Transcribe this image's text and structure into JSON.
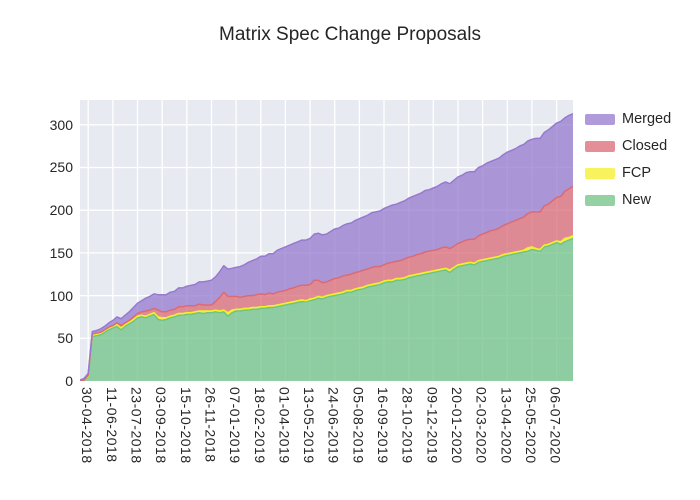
{
  "title": "Matrix Spec Change Proposals",
  "legend": {
    "items": [
      {
        "label": "Merged",
        "color": "#957ace"
      },
      {
        "label": "Closed",
        "color": "#db6a75"
      },
      {
        "label": "FCP",
        "color": "#f5ef26"
      },
      {
        "label": "New",
        "color": "#70c385"
      }
    ]
  },
  "colors": {
    "plot_background": "#e8eaf2",
    "grid": "#ffffff",
    "text": "#262626",
    "new": "#70c385",
    "fcp": "#f5ef26",
    "closed": "#db6a75",
    "merged": "#957ace"
  },
  "chart_data": {
    "type": "area",
    "stacked": true,
    "title": "Matrix Spec Change Proposals",
    "xlabel": "",
    "ylabel": "",
    "grid": true,
    "legend_position": "upper right, outside plot",
    "y_ticks": [
      0,
      50,
      100,
      150,
      200,
      250,
      300
    ],
    "ylim": [
      0,
      329
    ],
    "x_points": 121,
    "x_unit": "weeks, starting 2 weeks before first tick",
    "x_tick_labels": [
      "30-04-2018",
      "11-06-2018",
      "23-07-2018",
      "03-09-2018",
      "15-10-2018",
      "26-11-2018",
      "07-01-2019",
      "18-02-2019",
      "01-04-2019",
      "13-05-2019",
      "24-06-2019",
      "05-08-2019",
      "16-09-2019",
      "28-10-2019",
      "09-12-2019",
      "20-01-2020",
      "02-03-2020",
      "13-04-2020",
      "25-05-2020",
      "06-07-2020"
    ],
    "first_tick_point_index": 2,
    "tick_step_points": 6,
    "series": [
      {
        "name": "New",
        "color": "#70c385",
        "values": [
          0,
          1,
          5,
          52,
          53,
          54,
          57,
          60,
          62,
          64,
          60,
          64,
          67,
          70,
          74,
          75,
          74,
          76,
          78,
          72,
          71,
          72,
          74,
          75,
          77,
          77,
          78,
          78,
          79,
          80,
          79,
          80,
          80,
          81,
          80,
          81,
          76,
          80,
          82,
          82,
          83,
          83,
          84,
          84,
          85,
          85,
          86,
          86,
          87,
          88,
          89,
          90,
          91,
          92,
          93,
          93,
          94,
          95,
          97,
          96,
          98,
          99,
          100,
          101,
          102,
          104,
          104,
          106,
          107,
          108,
          110,
          111,
          112,
          113,
          115,
          116,
          116,
          118,
          118,
          119,
          121,
          122,
          123,
          124,
          125,
          126,
          127,
          128,
          129,
          130,
          127,
          131,
          134,
          135,
          136,
          137,
          136,
          139,
          140,
          141,
          142,
          143,
          144,
          146,
          147,
          148,
          149,
          150,
          151,
          152,
          154,
          153,
          152,
          157,
          158,
          160,
          162,
          160,
          163,
          165,
          167
        ]
      },
      {
        "name": "FCP",
        "color": "#f5ef26",
        "values": [
          0,
          0,
          1,
          2,
          2,
          2,
          2,
          2,
          2,
          2,
          2,
          2,
          2,
          2,
          2,
          2,
          2,
          2,
          2,
          3,
          3,
          2,
          2,
          2,
          2,
          2,
          2,
          2,
          2,
          2,
          3,
          2,
          2,
          2,
          2,
          2,
          4,
          3,
          2,
          2,
          2,
          2,
          2,
          2,
          2,
          2,
          2,
          2,
          2,
          2,
          2,
          2,
          2,
          2,
          2,
          1,
          2,
          2,
          2,
          2,
          2,
          2,
          2,
          2,
          2,
          2,
          2,
          2,
          2,
          2,
          2,
          2,
          2,
          2,
          2,
          2,
          2,
          2,
          2,
          2,
          2,
          2,
          2,
          2,
          2,
          2,
          2,
          2,
          2,
          2,
          3,
          2,
          2,
          2,
          2,
          2,
          2,
          2,
          2,
          2,
          2,
          2,
          2,
          2,
          2,
          2,
          2,
          2,
          2,
          4,
          3,
          2,
          2,
          2,
          2,
          2,
          2,
          3,
          4,
          3,
          3
        ]
      },
      {
        "name": "Closed",
        "color": "#db6a75",
        "values": [
          0,
          0,
          1,
          1,
          1,
          1,
          1,
          1,
          1,
          2,
          3,
          2,
          2,
          3,
          3,
          4,
          6,
          5,
          5,
          8,
          7,
          7,
          7,
          7,
          8,
          8,
          8,
          8,
          7,
          8,
          7,
          7,
          7,
          10,
          16,
          21,
          19,
          16,
          15,
          14,
          14,
          15,
          14,
          15,
          15,
          14,
          15,
          14,
          15,
          15,
          15,
          16,
          16,
          17,
          17,
          18,
          17,
          21,
          19,
          17,
          16,
          17,
          18,
          18,
          19,
          18,
          19,
          19,
          19,
          20,
          19,
          20,
          20,
          19,
          19,
          20,
          21,
          20,
          21,
          22,
          22,
          22,
          23,
          23,
          24,
          24,
          24,
          24,
          25,
          25,
          25,
          25,
          25,
          26,
          27,
          27,
          28,
          29,
          30,
          31,
          32,
          32,
          33,
          34,
          35,
          36,
          37,
          38,
          39,
          40,
          41,
          43,
          44,
          46,
          47,
          49,
          51,
          53,
          55,
          57,
          58
        ]
      },
      {
        "name": "Merged",
        "color": "#957ace",
        "values": [
          1,
          2,
          2,
          3,
          3,
          4,
          4,
          5,
          6,
          7,
          8,
          9,
          10,
          11,
          12,
          13,
          15,
          16,
          17,
          18,
          20,
          20,
          21,
          21,
          22,
          22,
          23,
          24,
          25,
          26,
          27,
          28,
          29,
          29,
          30,
          31,
          32,
          33,
          34,
          36,
          37,
          39,
          41,
          42,
          44,
          45,
          46,
          47,
          49,
          50,
          51,
          51,
          52,
          52,
          53,
          53,
          54,
          54,
          55,
          56,
          56,
          57,
          58,
          58,
          59,
          60,
          60,
          61,
          62,
          62,
          63,
          64,
          64,
          65,
          66,
          66,
          67,
          67,
          68,
          68,
          69,
          70,
          70,
          71,
          72,
          72,
          73,
          74,
          75,
          76,
          76,
          77,
          78,
          78,
          79,
          79,
          79,
          80,
          80,
          81,
          81,
          82,
          82,
          83,
          84,
          84,
          84,
          85,
          85,
          85,
          85,
          86,
          86,
          86,
          87,
          87,
          87,
          88,
          86,
          86,
          85
        ]
      }
    ]
  }
}
